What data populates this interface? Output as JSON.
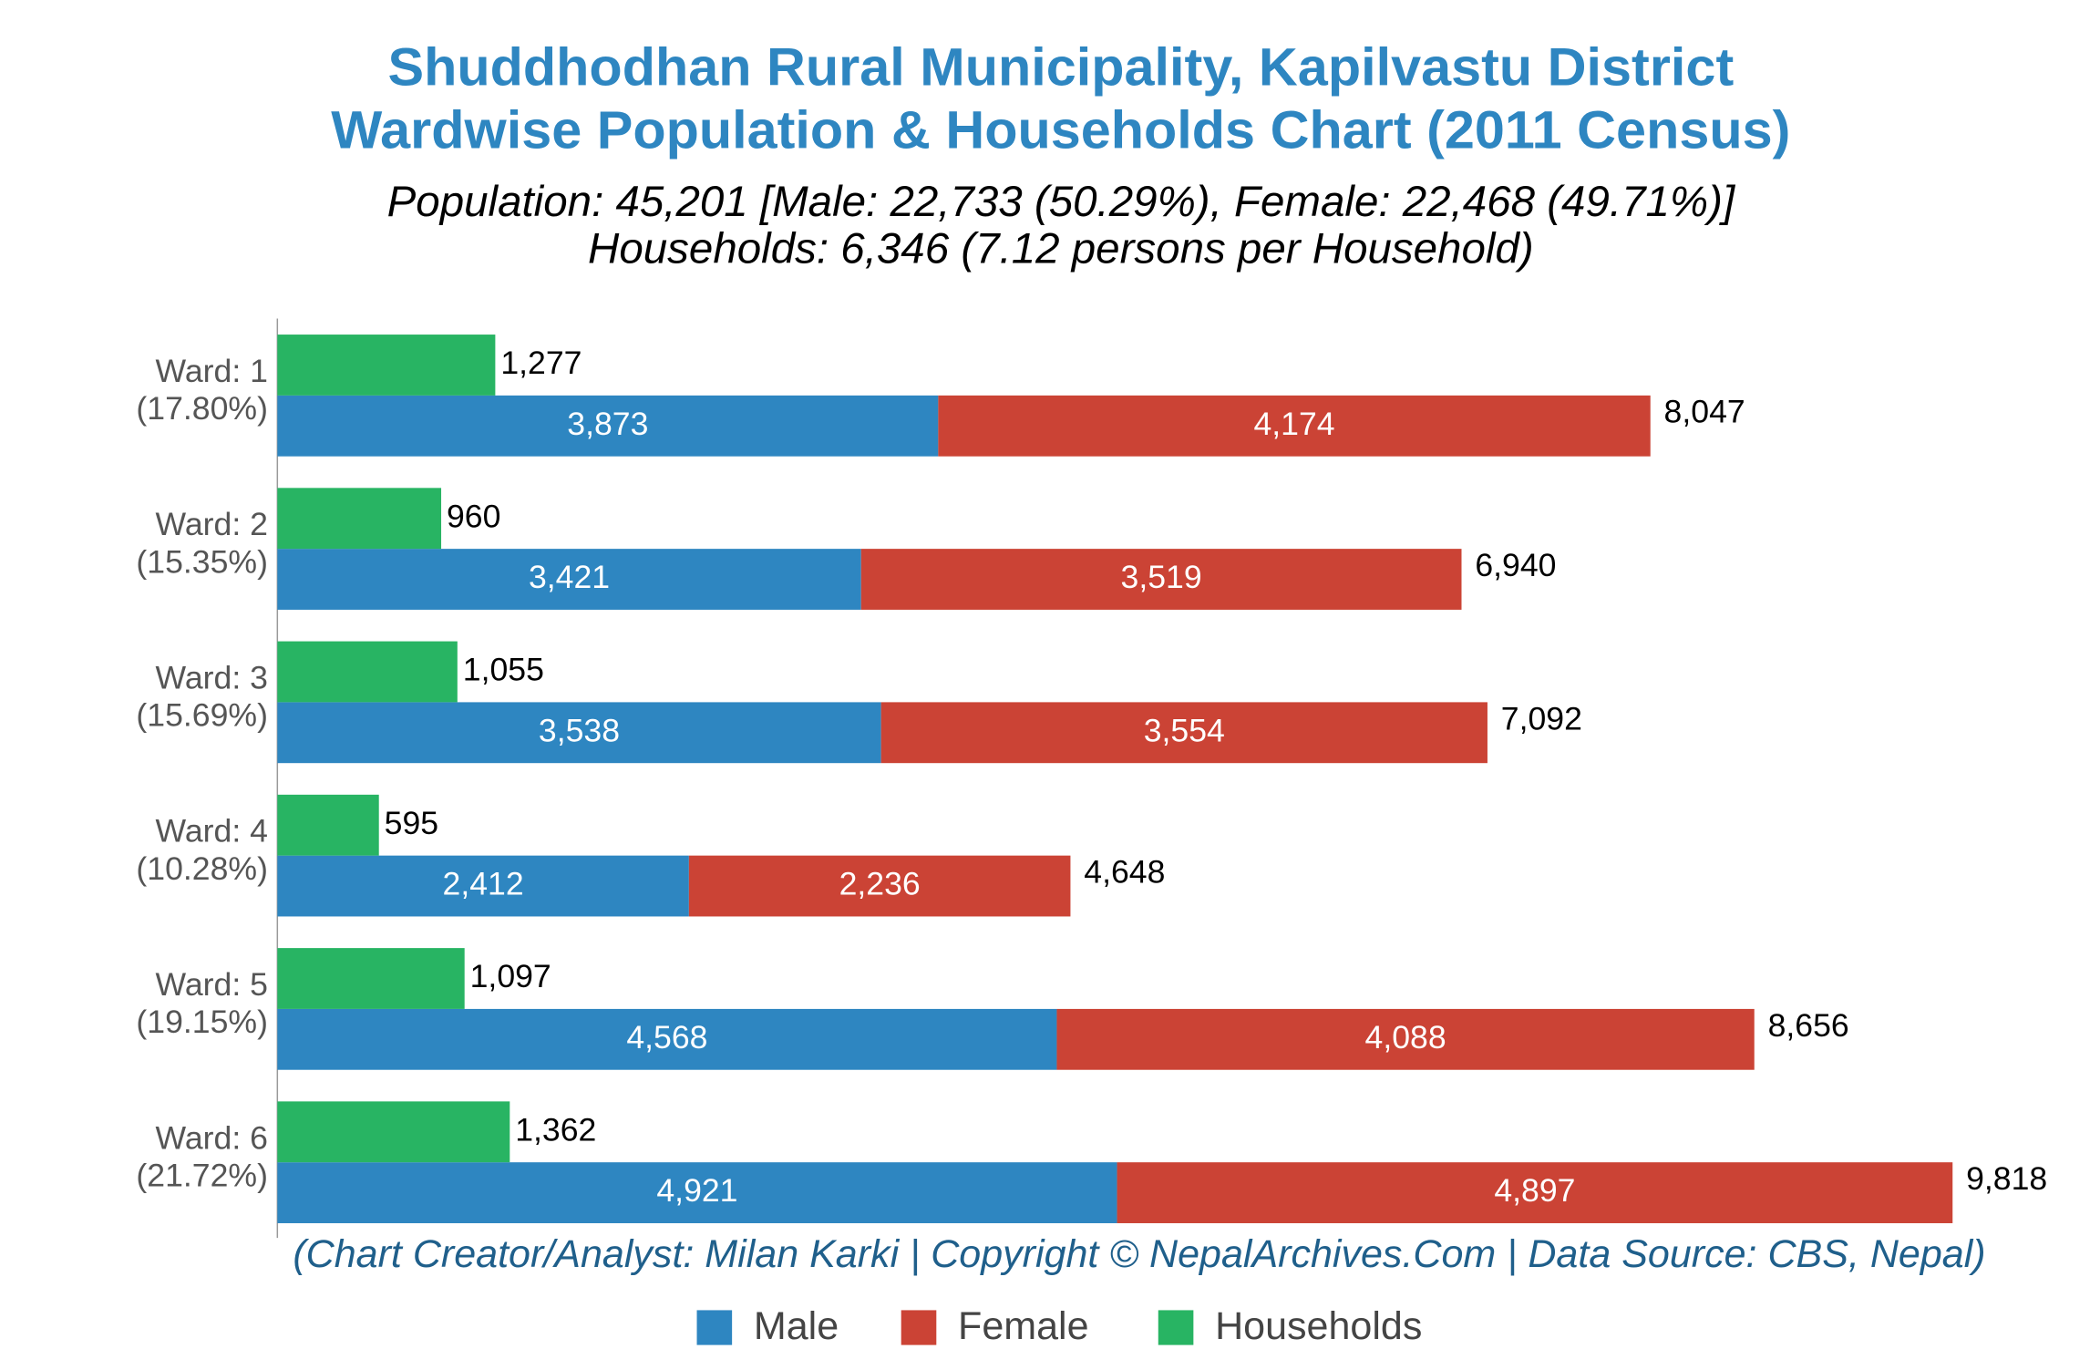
{
  "chart_data": {
    "type": "bar",
    "orientation": "horizontal",
    "title": "Shuddhodhan Rural Municipality, Kapilvastu District",
    "title_line2": "Wardwise Population & Households Chart (2011 Census)",
    "subtitle": "Population: 45,201 [Male: 22,733 (50.29%), Female: 22,468 (49.71%)]",
    "subtitle_line2": "Households: 6,346 (7.12 persons per Household)",
    "footer": "(Chart Creator/Analyst: Milan Karki | Copyright © NepalArchives.Com | Data Source: CBS, Nepal)",
    "categories": [
      "Ward: 1",
      "Ward: 2",
      "Ward: 3",
      "Ward: 4",
      "Ward: 5",
      "Ward: 6"
    ],
    "category_shares": [
      "(17.80%)",
      "(15.35%)",
      "(15.69%)",
      "(10.28%)",
      "(19.15%)",
      "(21.72%)"
    ],
    "series": [
      {
        "name": "Male",
        "color": "#2e86c1",
        "stack": "population",
        "values": [
          3873,
          3421,
          3538,
          2412,
          4568,
          4921
        ],
        "value_labels": [
          "3,873",
          "3,421",
          "3,538",
          "2,412",
          "4,568",
          "4,921"
        ]
      },
      {
        "name": "Female",
        "color": "#cb4335",
        "stack": "population",
        "values": [
          4174,
          3519,
          3554,
          2236,
          4088,
          4897
        ],
        "value_labels": [
          "4,174",
          "3,519",
          "3,554",
          "2,236",
          "4,088",
          "4,897"
        ]
      },
      {
        "name": "Households",
        "color": "#28b463",
        "stack": "households",
        "values": [
          1277,
          960,
          1055,
          595,
          1097,
          1362
        ],
        "value_labels": [
          "1,277",
          "960",
          "1,055",
          "595",
          "1,097",
          "1,362"
        ]
      }
    ],
    "totals": [
      8047,
      6940,
      7092,
      4648,
      8656,
      9818
    ],
    "total_labels": [
      "8,047",
      "6,940",
      "7,092",
      "4,648",
      "8,656",
      "9,818"
    ],
    "xlim": [
      0,
      10000
    ],
    "legend": "bottom"
  }
}
